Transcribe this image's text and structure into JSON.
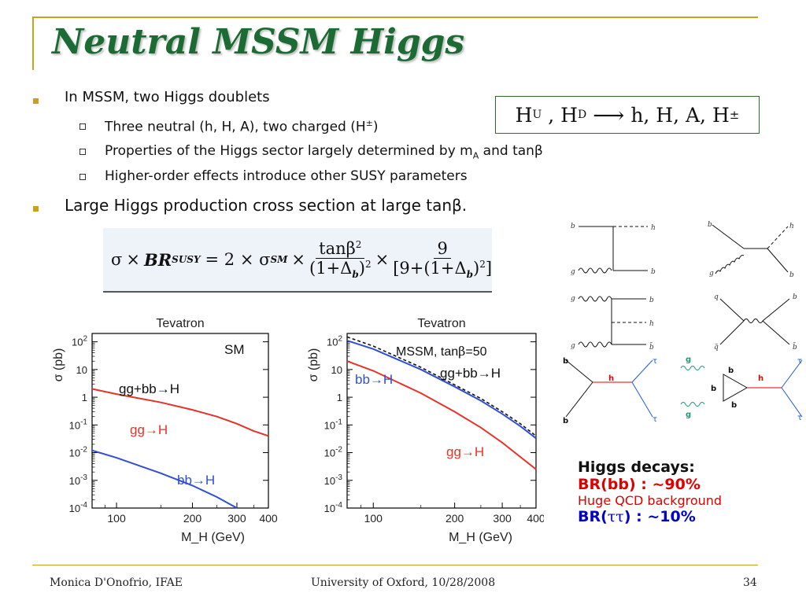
{
  "slide": {
    "title": "Neutral MSSM Higgs",
    "bullets": {
      "b1": "In MSSM,  two Higgs doublets",
      "b1_sub1_pre": "Three neutral (h, H, A), two charged (H",
      "b1_sub1_sup": "±",
      "b1_sub1_post": ")",
      "b1_sub2_pre": "Properties of the Higgs sector largely determined by m",
      "b1_sub2_sub": "A",
      "b1_sub2_post": "  and tanβ",
      "b1_sub3": "Higher-order effects introduce other SUSY parameters",
      "b2": "Large Higgs production cross section at large tanβ."
    },
    "doublet_eq": {
      "lhs1": "H",
      "lhs1_sub": "U",
      "comma": " , ",
      "lhs2": "H",
      "lhs2_sub": "D",
      "arrow": "⟶",
      "rhs": "h, H, A, H",
      "rhs_sup": "±"
    },
    "formula": {
      "sigma": "σ",
      "times": "×",
      "br": "BR",
      "br_sub": "SUSY",
      "eq": "= 2 × σ",
      "sm_sub": "SM",
      "num1": "tanβ",
      "num1_sup": "2",
      "den1": "(1+Δ",
      "den1_sub": "b",
      "den1_end": ")",
      "den1_sup": "2",
      "num2": "9",
      "den2": "[9+(1+Δ",
      "den2_sub": "b",
      "den2_end": ")",
      "den2_sup": "2",
      "den2_close": "]"
    },
    "decays": {
      "heading": "Higgs decays:",
      "bb": "BR(bb) : ~90%",
      "qcd": "Huge QCD background",
      "tautau_pre": "BR(",
      "tautau_mid": "ττ",
      "tautau_post": ") : ~10%"
    },
    "footer": {
      "author": "Monica D'Onofrio, IFAE",
      "venue": "University of Oxford, 10/28/2008",
      "page": "34"
    },
    "feynman": {
      "d1": [
        "b",
        "h",
        "g",
        "b"
      ],
      "d2": [
        "b",
        "h",
        "g",
        "b"
      ],
      "d3": [
        "g",
        "b",
        "h",
        "g",
        "b̄"
      ],
      "d4": [
        "q",
        "b",
        "q̄",
        "b̄"
      ],
      "d5": [
        "b",
        "τ",
        "h",
        "b",
        "τ"
      ],
      "d6": [
        "g",
        "b",
        "h",
        "b",
        "b",
        "τ",
        "g",
        "τ"
      ]
    },
    "colors": {
      "title_green": "#1d6b34",
      "gold": "#c7a21b",
      "decay_red": "#e00000",
      "decay_blue": "#0000cc"
    }
  },
  "chart_data": [
    {
      "type": "line",
      "title": "Tevatron",
      "annotation": "SM",
      "xlabel": "M_H (GeV)",
      "ylabel": "σ (pb)",
      "xscale": "log",
      "yscale": "log",
      "xlim": [
        80,
        400
      ],
      "ylim": [
        0.0001,
        200
      ],
      "xticks": [
        "100",
        "200",
        "300",
        "400"
      ],
      "yticks": [
        "10^-4",
        "10^-3",
        "10^-2",
        "10^-1",
        "1",
        "10",
        "10^2"
      ],
      "series": [
        {
          "name": "gg+bb→H",
          "color": "#111111",
          "dash": true,
          "x": [
            80,
            100,
            150,
            200,
            250,
            300,
            350,
            400
          ],
          "y": [
            2.0,
            1.3,
            0.65,
            0.35,
            0.2,
            0.11,
            0.06,
            0.04
          ]
        },
        {
          "name": "gg→H",
          "color": "#e8332a",
          "x": [
            80,
            100,
            150,
            200,
            250,
            300,
            350,
            400
          ],
          "y": [
            2.0,
            1.3,
            0.65,
            0.35,
            0.2,
            0.11,
            0.06,
            0.04
          ]
        },
        {
          "name": "bb→H",
          "color": "#2e4fd6",
          "x": [
            80,
            100,
            150,
            200,
            250,
            300
          ],
          "y": [
            0.012,
            0.0065,
            0.0018,
            0.00065,
            0.00025,
            0.0001
          ]
        }
      ]
    },
    {
      "type": "line",
      "title": "Tevatron",
      "annotation_pre": "MSSM, tan",
      "annotation_beta": "β",
      "annotation_post": "=50",
      "xlabel": "M_H (GeV)",
      "ylabel": "σ (pb)",
      "xscale": "log",
      "yscale": "log",
      "xlim": [
        80,
        400
      ],
      "ylim": [
        0.0001,
        200
      ],
      "xticks": [
        "100",
        "200",
        "300",
        "400"
      ],
      "yticks": [
        "10^-4",
        "10^-3",
        "10^-2",
        "10^-1",
        "1",
        "10",
        "10^2"
      ],
      "series": [
        {
          "name": "gg+bb→H",
          "color": "#111111",
          "dash": true,
          "x": [
            80,
            100,
            150,
            200,
            250,
            300,
            350,
            400
          ],
          "y": [
            150,
            70,
            12,
            2.8,
            0.9,
            0.3,
            0.11,
            0.04
          ]
        },
        {
          "name": "bb→H",
          "color": "#2e4fd6",
          "x": [
            80,
            100,
            150,
            200,
            250,
            300,
            350,
            400
          ],
          "y": [
            110,
            55,
            10,
            2.4,
            0.75,
            0.25,
            0.09,
            0.033
          ]
        },
        {
          "name": "gg→H",
          "color": "#e8332a",
          "x": [
            80,
            100,
            150,
            200,
            250,
            300,
            350,
            400
          ],
          "y": [
            20,
            9,
            1.4,
            0.3,
            0.08,
            0.023,
            0.007,
            0.0025
          ]
        }
      ]
    }
  ]
}
